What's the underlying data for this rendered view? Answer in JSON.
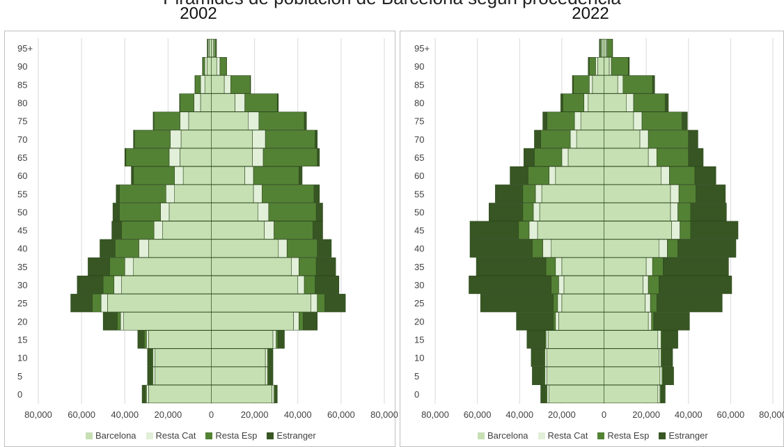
{
  "header": {
    "title": "Pirámides de población de Barcelona según procedencia"
  },
  "colors": {
    "Barcelona": "#c6e0b4",
    "Resta Cat": "#e2efd9",
    "Resta Esp": "#548235",
    "Estranger": "#375623",
    "border": "#2e4a1d"
  },
  "chart_data": [
    {
      "type": "bar",
      "subtype": "population-pyramid",
      "title": "2002",
      "age_groups": [
        "0",
        "5",
        "10",
        "15",
        "20",
        "25",
        "30",
        "35",
        "40",
        "45",
        "50",
        "55",
        "60",
        "65",
        "70",
        "75",
        "80",
        "85",
        "90",
        "95+"
      ],
      "xticks": [
        "80,000",
        "60,000",
        "40,000",
        "20,000",
        "0",
        "20,000",
        "40,000",
        "60,000",
        "80,000"
      ],
      "xlim": [
        -80000,
        80000
      ],
      "legend_position": "bottom",
      "grid": true,
      "series": [
        {
          "name": "Barcelona",
          "left": [
            29000,
            26000,
            26000,
            29000,
            40500,
            48000,
            41500,
            36000,
            29000,
            22500,
            19500,
            17000,
            13000,
            14500,
            14000,
            10500,
            5000,
            3000,
            2000,
            1000
          ],
          "right": [
            28000,
            25000,
            25000,
            28500,
            38000,
            46000,
            40000,
            37000,
            31000,
            24500,
            21500,
            19500,
            15500,
            19000,
            19000,
            17000,
            11000,
            6000,
            2500,
            1000
          ]
        },
        {
          "name": "Resta Cat",
          "left": [
            1000,
            1000,
            1000,
            1000,
            1500,
            3000,
            3500,
            4000,
            4500,
            4000,
            4000,
            4000,
            4000,
            5000,
            5000,
            4000,
            3000,
            2000,
            1000,
            500
          ],
          "right": [
            1000,
            1000,
            1000,
            1500,
            2500,
            3000,
            3000,
            3500,
            4000,
            4500,
            5000,
            4000,
            4000,
            5000,
            6000,
            5000,
            4500,
            3000,
            1500,
            500
          ]
        },
        {
          "name": "Resta Esp",
          "left": [
            500,
            500,
            500,
            1000,
            1500,
            4000,
            5000,
            7000,
            11000,
            15000,
            19000,
            21500,
            19000,
            20000,
            16500,
            12000,
            6500,
            2500,
            1000,
            300
          ],
          "right": [
            500,
            500,
            500,
            800,
            2000,
            3500,
            5000,
            8000,
            14000,
            18000,
            22000,
            24000,
            21000,
            25000,
            23000,
            21000,
            15000,
            9000,
            3000,
            800
          ]
        },
        {
          "name": "Estranger",
          "left": [
            1500,
            2000,
            2000,
            3000,
            6500,
            10000,
            12000,
            10000,
            7000,
            4500,
            3000,
            1500,
            1000,
            500,
            500,
            400,
            200,
            100,
            100,
            100
          ],
          "right": [
            1000,
            2000,
            2000,
            3000,
            6500,
            9500,
            11000,
            9000,
            6500,
            4500,
            3000,
            2500,
            1500,
            1000,
            1000,
            1000,
            500,
            200,
            100,
            100
          ]
        }
      ]
    },
    {
      "type": "bar",
      "subtype": "population-pyramid",
      "title": "2022",
      "age_groups": [
        "0",
        "5",
        "10",
        "15",
        "20",
        "25",
        "30",
        "35",
        "40",
        "45",
        "50",
        "55",
        "60",
        "65",
        "70",
        "75",
        "80",
        "85",
        "90",
        "95+"
      ],
      "xticks": [
        "80,000",
        "60,000",
        "40,000",
        "20,000",
        "0",
        "20,000",
        "40,000",
        "60,000",
        "80,000"
      ],
      "xlim": [
        -80000,
        80000
      ],
      "legend_position": "bottom",
      "grid": true,
      "series": [
        {
          "name": "Barcelona",
          "left": [
            26000,
            27000,
            27000,
            26500,
            21500,
            20000,
            19000,
            20000,
            25000,
            31500,
            30500,
            29500,
            23000,
            17000,
            13000,
            11000,
            7500,
            5500,
            3000,
            1000
          ],
          "right": [
            25500,
            26500,
            26000,
            25500,
            21000,
            19500,
            18500,
            20000,
            26000,
            32000,
            31500,
            31500,
            27000,
            21000,
            17000,
            14000,
            10500,
            6500,
            2500,
            1000
          ]
        },
        {
          "name": "Resta Cat",
          "left": [
            1000,
            1000,
            1000,
            1000,
            1500,
            2000,
            2500,
            3000,
            4000,
            4000,
            3000,
            3000,
            3000,
            3000,
            3000,
            3000,
            2000,
            1500,
            1000,
            500
          ],
          "right": [
            1000,
            1000,
            1000,
            1500,
            1500,
            2500,
            2500,
            3000,
            4000,
            4000,
            3500,
            4000,
            4000,
            4000,
            4000,
            4000,
            3500,
            2500,
            1000,
            500
          ]
        },
        {
          "name": "Resta Esp",
          "left": [
            500,
            500,
            500,
            500,
            1000,
            2000,
            3500,
            4500,
            5000,
            5000,
            5000,
            6000,
            10000,
            13000,
            14000,
            13000,
            10000,
            7500,
            3000,
            500
          ],
          "right": [
            500,
            500,
            500,
            500,
            1000,
            3000,
            5000,
            5000,
            5000,
            5000,
            6000,
            8000,
            12000,
            15000,
            19000,
            19000,
            15000,
            14000,
            8000,
            2500
          ]
        },
        {
          "name": "Estranger",
          "left": [
            2500,
            5500,
            6000,
            8500,
            17500,
            34500,
            39000,
            33000,
            29500,
            23000,
            16000,
            13000,
            8500,
            5000,
            3000,
            2000,
            1000,
            500,
            500,
            200
          ],
          "right": [
            2000,
            5000,
            5000,
            7500,
            17000,
            31000,
            34500,
            31000,
            27500,
            22500,
            17000,
            14000,
            10000,
            7000,
            4500,
            2500,
            1500,
            1000,
            500,
            100
          ]
        }
      ]
    }
  ]
}
